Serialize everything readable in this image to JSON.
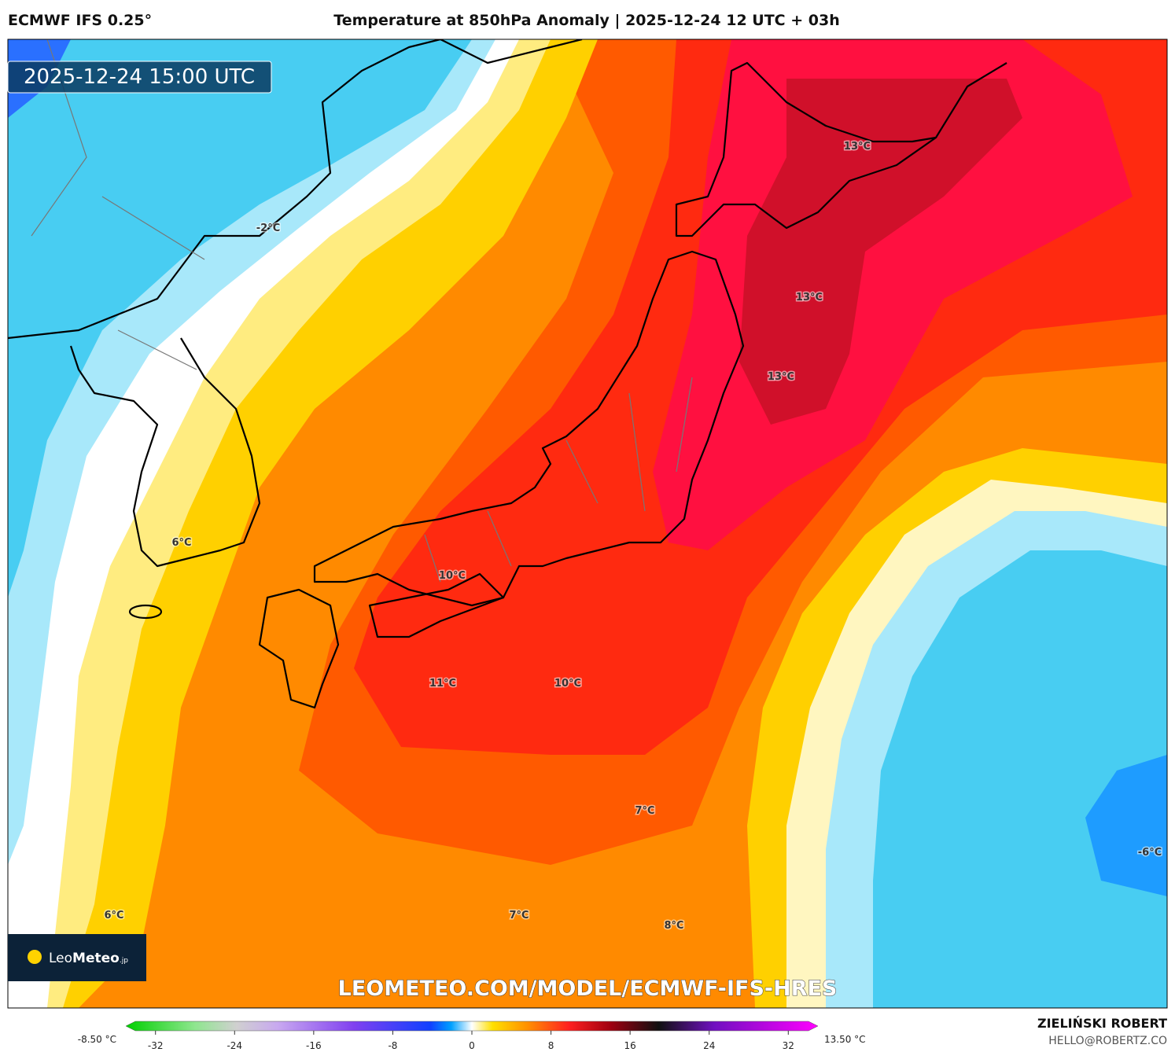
{
  "header": {
    "model": "ECMWF IFS 0.25°",
    "title": "Temperature at 850hPa Anomaly | 2025-12-24 12 UTC + 03h"
  },
  "map": {
    "timestamp": "2025-12-24 15:00 UTC",
    "contour_labels": [
      "13°C",
      "13°C",
      "13°C",
      "-2°C",
      "6°C",
      "10°C",
      "11°C",
      "10°C",
      "7°C",
      "-6°C",
      "6°C",
      "7°C",
      "8°C"
    ],
    "watermark": "LEOMETEO.COM/MODEL/ECMWF-IFS-HRES"
  },
  "logo": {
    "name": "Leo",
    "name_bold": "Meteo",
    "suffix": ".jp"
  },
  "colorbar": {
    "min_label": "-8.50 °C",
    "max_label": "13.50 °C",
    "lim": [
      -35,
      35
    ],
    "ticks": [
      -32,
      -24,
      -16,
      -8,
      0,
      8,
      16,
      24,
      32
    ]
  },
  "footer": {
    "author": "ZIELIŃSKI ROBERT",
    "email": "HELLO@ROBERTZ.CO"
  }
}
